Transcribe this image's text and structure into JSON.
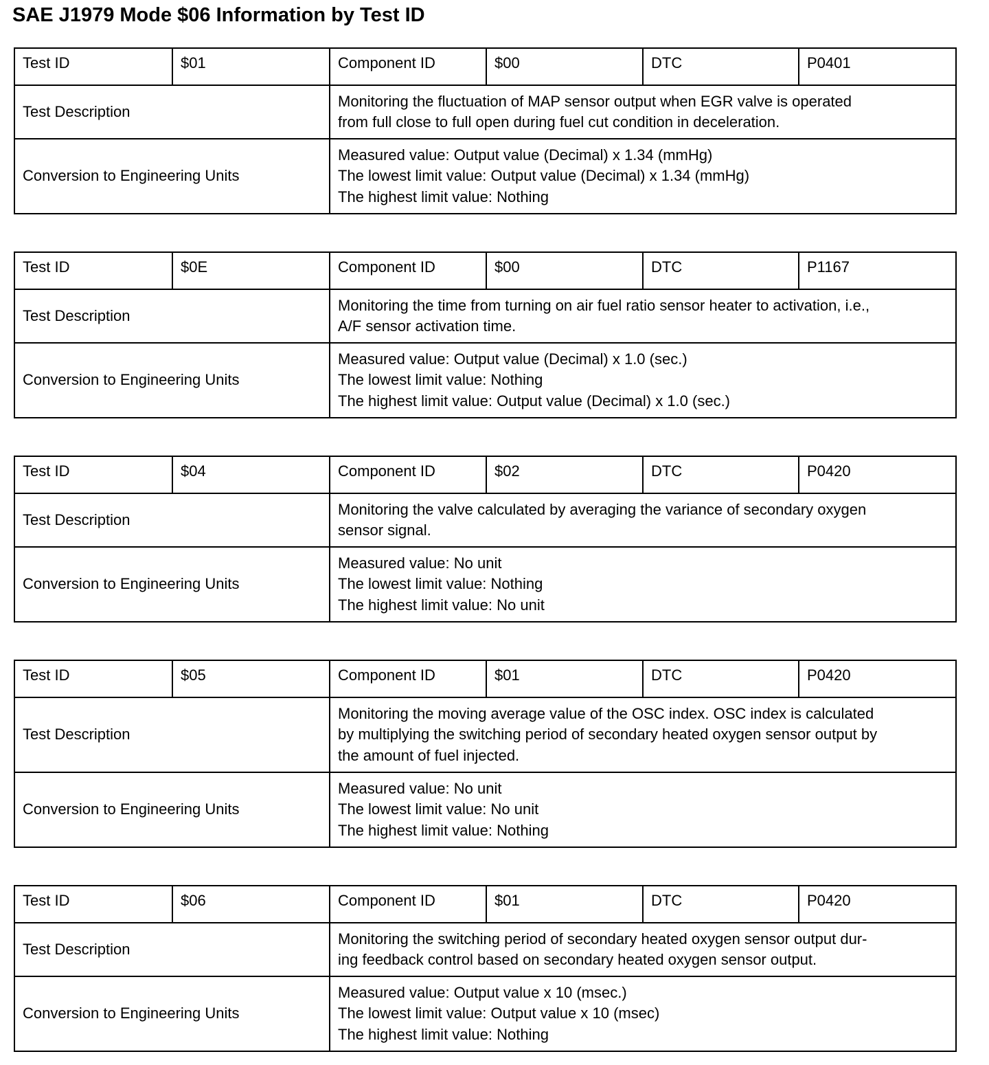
{
  "title": "SAE J1979 Mode $06 Information by Test ID",
  "labels": {
    "test_id": "Test ID",
    "component_id": "Component ID",
    "dtc": "DTC",
    "test_description": "Test Description",
    "conversion": "Conversion to Engineering Units"
  },
  "tests": [
    {
      "test_id": "$01",
      "component_id": "$00",
      "dtc": "P0401",
      "description": [
        "Monitoring the fluctuation of MAP sensor output when EGR valve is operated",
        "from full close to full open during fuel cut condition in deceleration."
      ],
      "conversion": [
        "Measured value: Output value (Decimal) x 1.34 (mmHg)",
        "The lowest limit value: Output value (Decimal) x 1.34 (mmHg)",
        "The highest limit value: Nothing"
      ]
    },
    {
      "test_id": "$0E",
      "component_id": "$00",
      "dtc": "P1167",
      "description": [
        "Monitoring the time from turning on air fuel ratio sensor heater to activation, i.e.,",
        "A/F sensor activation time."
      ],
      "conversion": [
        "Measured value: Output value (Decimal) x 1.0 (sec.)",
        "The lowest limit value: Nothing",
        "The highest limit value: Output value (Decimal) x 1.0 (sec.)"
      ]
    },
    {
      "test_id": "$04",
      "component_id": "$02",
      "dtc": "P0420",
      "description": [
        "Monitoring the valve calculated by averaging the variance of secondary oxygen",
        "sensor signal."
      ],
      "conversion": [
        "Measured value: No unit",
        "The lowest limit value: Nothing",
        "The highest limit value: No unit"
      ]
    },
    {
      "test_id": "$05",
      "component_id": "$01",
      "dtc": "P0420",
      "description": [
        "Monitoring the moving average value of the OSC index. OSC index is calculated",
        "by multiplying the switching period of secondary heated oxygen sensor output by",
        "the amount of fuel injected."
      ],
      "conversion": [
        "Measured value: No unit",
        "The lowest limit value: No unit",
        "The highest limit value: Nothing"
      ]
    },
    {
      "test_id": "$06",
      "component_id": "$01",
      "dtc": "P0420",
      "description": [
        "Monitoring the switching period of secondary heated oxygen sensor output dur-",
        "ing feedback control based on secondary heated oxygen sensor output."
      ],
      "conversion": [
        "Measured value: Output value x 10 (msec.)",
        "The lowest limit value: Output value x 10 (msec)",
        "The highest limit value: Nothing"
      ]
    }
  ]
}
